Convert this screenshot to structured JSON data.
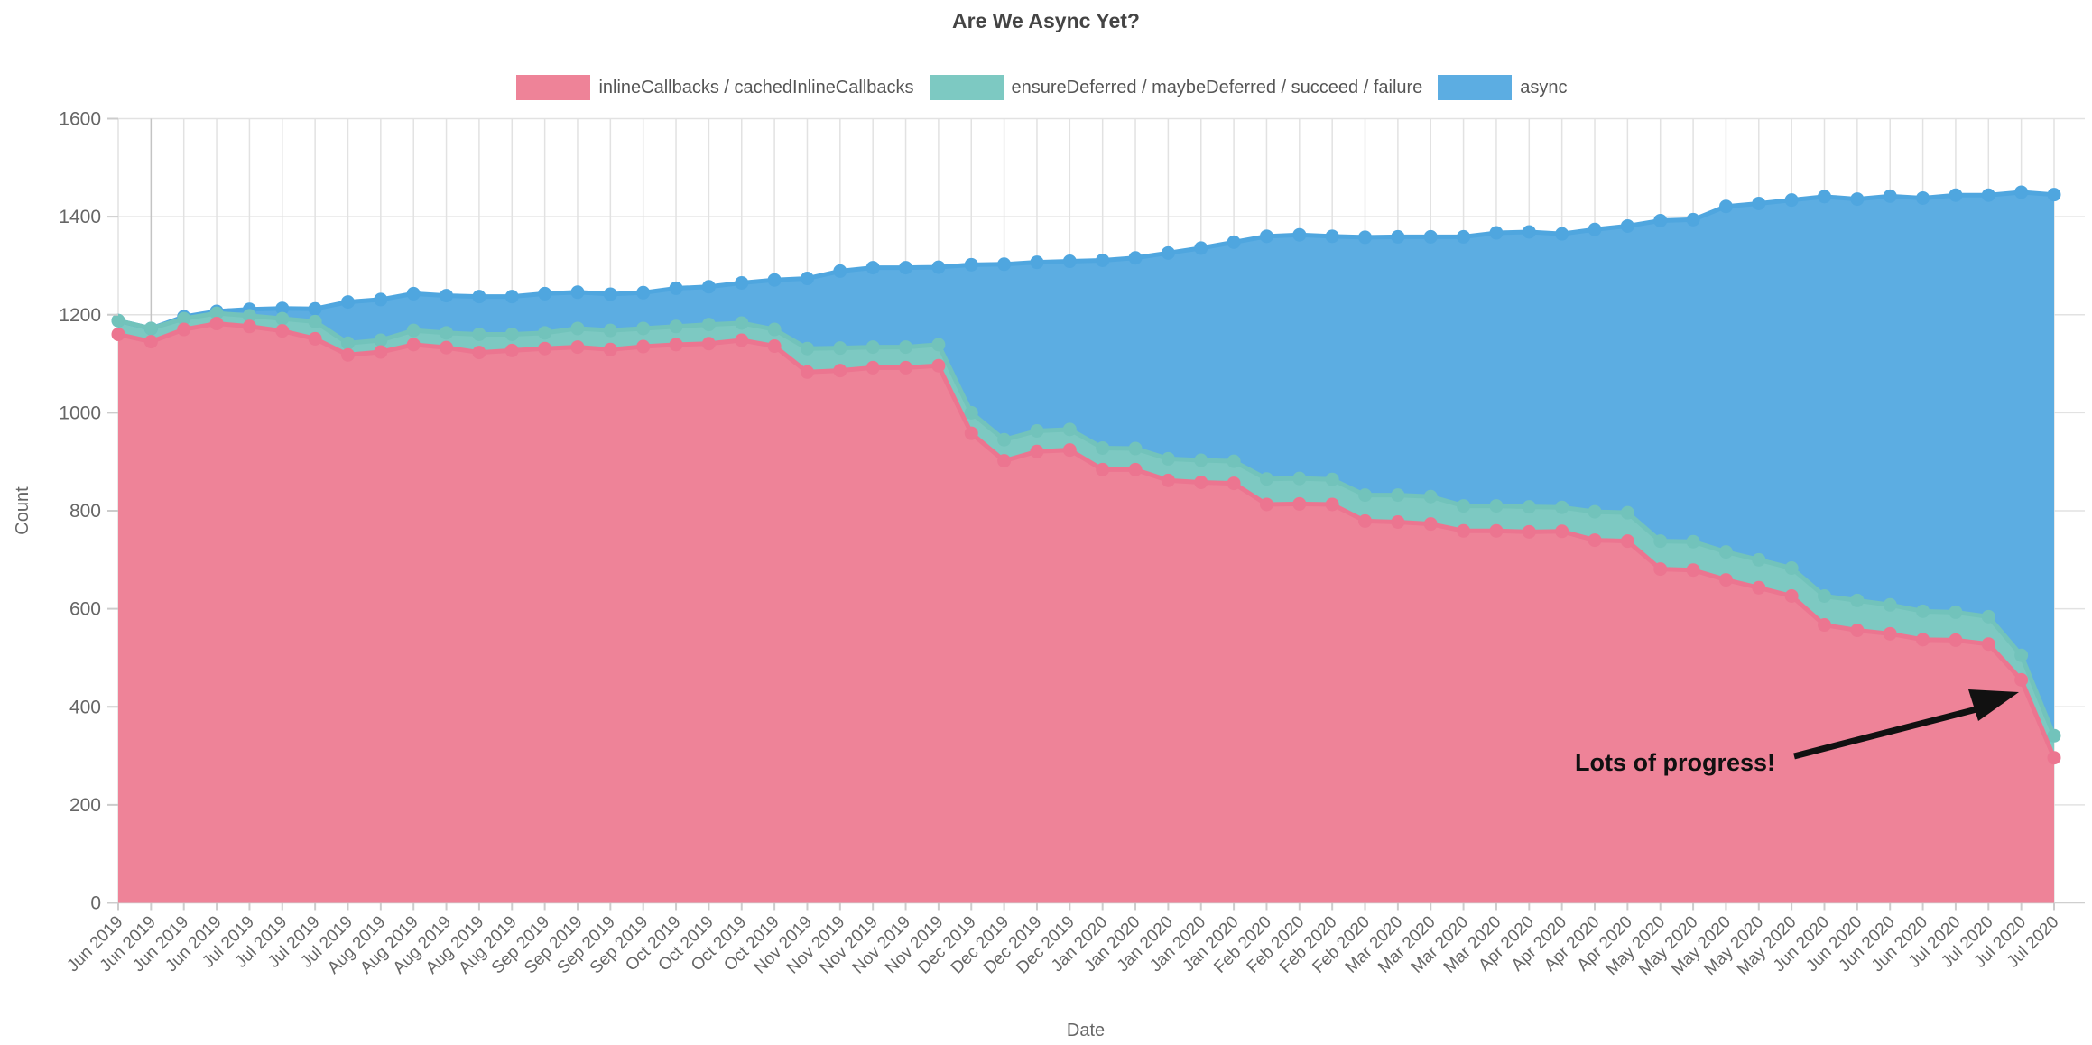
{
  "chart_data": {
    "type": "area",
    "stacked": true,
    "title": "Are We Async Yet?",
    "xlabel": "Date",
    "ylabel": "Count",
    "ylim": [
      0,
      1600
    ],
    "yticks": [
      "0",
      "200",
      "400",
      "600",
      "800",
      "1000",
      "1200",
      "1400",
      "1600"
    ],
    "grid": true,
    "legend_position": "top-center",
    "annotation": {
      "text": "Lots of progress!"
    },
    "categories": [
      "Jun 2019",
      "Jun 2019",
      "Jun 2019",
      "Jun 2019",
      "Jul 2019",
      "Jul 2019",
      "Jul 2019",
      "Jul 2019",
      "Aug 2019",
      "Aug 2019",
      "Aug 2019",
      "Aug 2019",
      "Aug 2019",
      "Sep 2019",
      "Sep 2019",
      "Sep 2019",
      "Sep 2019",
      "Oct 2019",
      "Oct 2019",
      "Oct 2019",
      "Oct 2019",
      "Nov 2019",
      "Nov 2019",
      "Nov 2019",
      "Nov 2019",
      "Nov 2019",
      "Dec 2019",
      "Dec 2019",
      "Dec 2019",
      "Dec 2019",
      "Jan 2020",
      "Jan 2020",
      "Jan 2020",
      "Jan 2020",
      "Jan 2020",
      "Feb 2020",
      "Feb 2020",
      "Feb 2020",
      "Feb 2020",
      "Mar 2020",
      "Mar 2020",
      "Mar 2020",
      "Mar 2020",
      "Apr 2020",
      "Apr 2020",
      "Apr 2020",
      "Apr 2020",
      "May 2020",
      "May 2020",
      "May 2020",
      "May 2020",
      "May 2020",
      "Jun 2020",
      "Jun 2020",
      "Jun 2020",
      "Jun 2020",
      "Jul 2020",
      "Jul 2020",
      "Jul 2020",
      "Jul 2020"
    ],
    "series": [
      {
        "name": "inlineCallbacks / cachedInlineCallbacks",
        "color": "#ee8398",
        "line_color": "#ec7590",
        "values": [
          1160,
          1145,
          1170,
          1182,
          1176,
          1167,
          1151,
          1118,
          1124,
          1139,
          1133,
          1123,
          1127,
          1131,
          1134,
          1129,
          1135,
          1139,
          1141,
          1148,
          1136,
          1083,
          1086,
          1092,
          1092,
          1096,
          958,
          902,
          921,
          924,
          884,
          884,
          862,
          858,
          856,
          813,
          814,
          813,
          779,
          777,
          773,
          759,
          759,
          757,
          758,
          740,
          738,
          681,
          679,
          659,
          643,
          626,
          567,
          556,
          549,
          537,
          536,
          528,
          455,
          296
        ]
      },
      {
        "name": "ensureDeferred / maybeDeferred / succeed / failure",
        "color": "#7dc9c2",
        "line_color": "#72c3bb",
        "values": [
          28,
          27,
          22,
          21,
          22,
          25,
          35,
          24,
          24,
          29,
          30,
          37,
          33,
          32,
          38,
          39,
          37,
          37,
          39,
          35,
          34,
          48,
          46,
          42,
          42,
          43,
          42,
          43,
          42,
          42,
          44,
          43,
          44,
          45,
          45,
          52,
          52,
          51,
          53,
          55,
          56,
          51,
          51,
          51,
          49,
          58,
          58,
          57,
          58,
          57,
          57,
          57,
          59,
          61,
          59,
          58,
          57,
          56,
          50,
          45
        ]
      },
      {
        "name": "async",
        "color": "#5cade2",
        "line_color": "#4fa6df",
        "values": [
          0,
          0,
          4,
          4,
          13,
          21,
          26,
          84,
          83,
          75,
          76,
          77,
          77,
          80,
          74,
          74,
          73,
          78,
          77,
          82,
          101,
          143,
          157,
          162,
          162,
          158,
          302,
          358,
          344,
          343,
          383,
          389,
          420,
          433,
          447,
          495,
          497,
          496,
          526,
          527,
          530,
          549,
          557,
          561,
          558,
          576,
          585,
          654,
          657,
          705,
          727,
          751,
          815,
          819,
          834,
          843,
          851,
          860,
          945,
          1104
        ]
      }
    ],
    "colors": {
      "grid": "#e2e2e2",
      "grid_dark": "#c4c4c4",
      "axis_tick": "#cccccc",
      "tick_label": "#666666",
      "title_text": "#444444",
      "annotation": "#111111",
      "background": "#ffffff"
    }
  }
}
